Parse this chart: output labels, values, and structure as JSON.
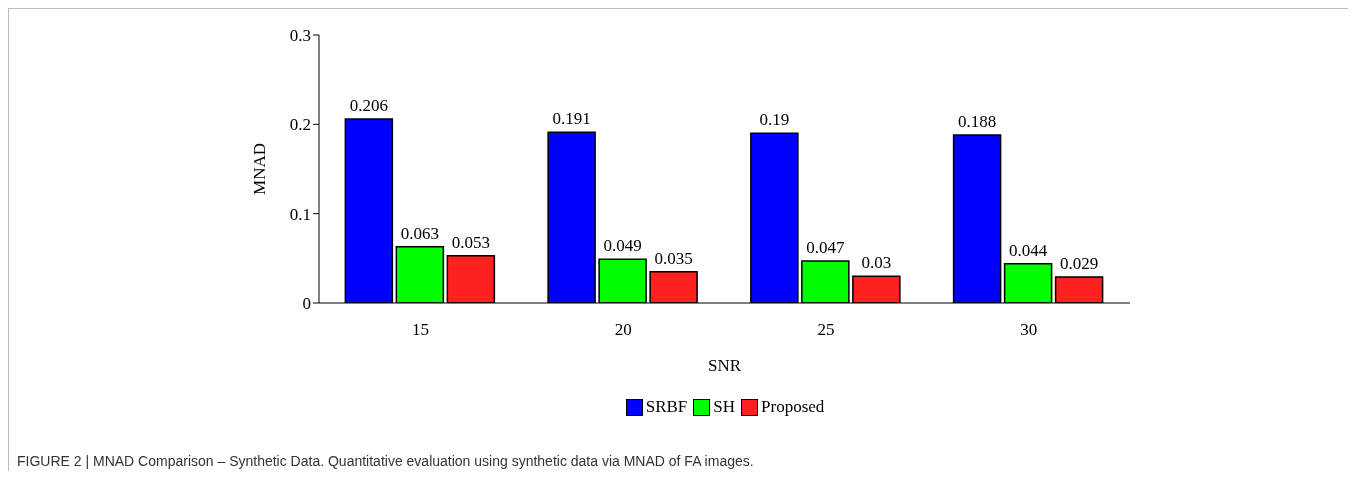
{
  "chart_data": {
    "type": "bar",
    "xlabel": "SNR",
    "ylabel": "MNAD",
    "categories": [
      "15",
      "20",
      "25",
      "30"
    ],
    "series": [
      {
        "name": "SRBF",
        "color": "#0000ff",
        "values": [
          0.206,
          0.191,
          0.19,
          0.188
        ]
      },
      {
        "name": "SH",
        "color": "#00ff00",
        "values": [
          0.063,
          0.049,
          0.047,
          0.044
        ]
      },
      {
        "name": "Proposed",
        "color": "#ff2020",
        "values": [
          0.053,
          0.035,
          0.03,
          0.029
        ]
      }
    ],
    "ylim": [
      0,
      0.3
    ],
    "yticks": [
      0,
      0.1,
      0.2,
      0.3
    ],
    "data_labels": true,
    "legend": "bottom",
    "grid": false,
    "annotations": [
      "FIGURE 2 | MNAD Comparison – Synthetic Data. Quantitative evaluation using synthetic data via MNAD of FA images."
    ]
  }
}
